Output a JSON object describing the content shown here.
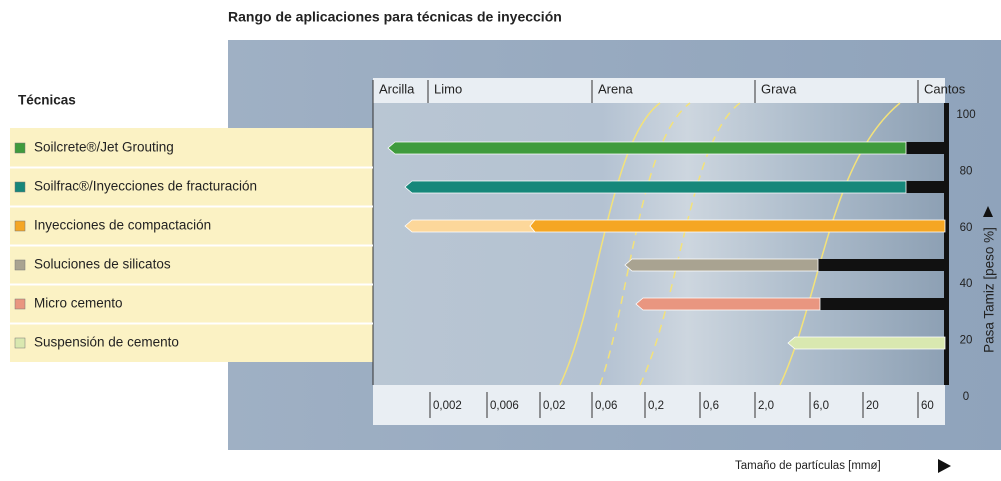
{
  "title": "Rango de aplicaciones para técnicas de inyección",
  "legend_title": "Técnicas",
  "techniques": [
    "Soilcrete®/Jet Grouting",
    "Soilfrac®/Inyecciones de fracturación",
    "Inyecciones de compactación",
    "Soluciones de silicatos",
    "Micro cemento",
    "Suspensión de cemento"
  ],
  "zones": [
    "Arcilla",
    "Limo",
    "Arena",
    "Grava",
    "Cantos"
  ],
  "x_ticks": [
    "0,002",
    "0,006",
    "0,02",
    "0,06",
    "0,2",
    "0,6",
    "2,0",
    "6,0",
    "20",
    "60"
  ],
  "y_ticks": [
    "100",
    "80",
    "60",
    "40",
    "20",
    "0"
  ],
  "y_axis_label": "Pasa Tamiz [peso %]",
  "x_axis_label": "Tamaño de partículas [mmø]"
}
